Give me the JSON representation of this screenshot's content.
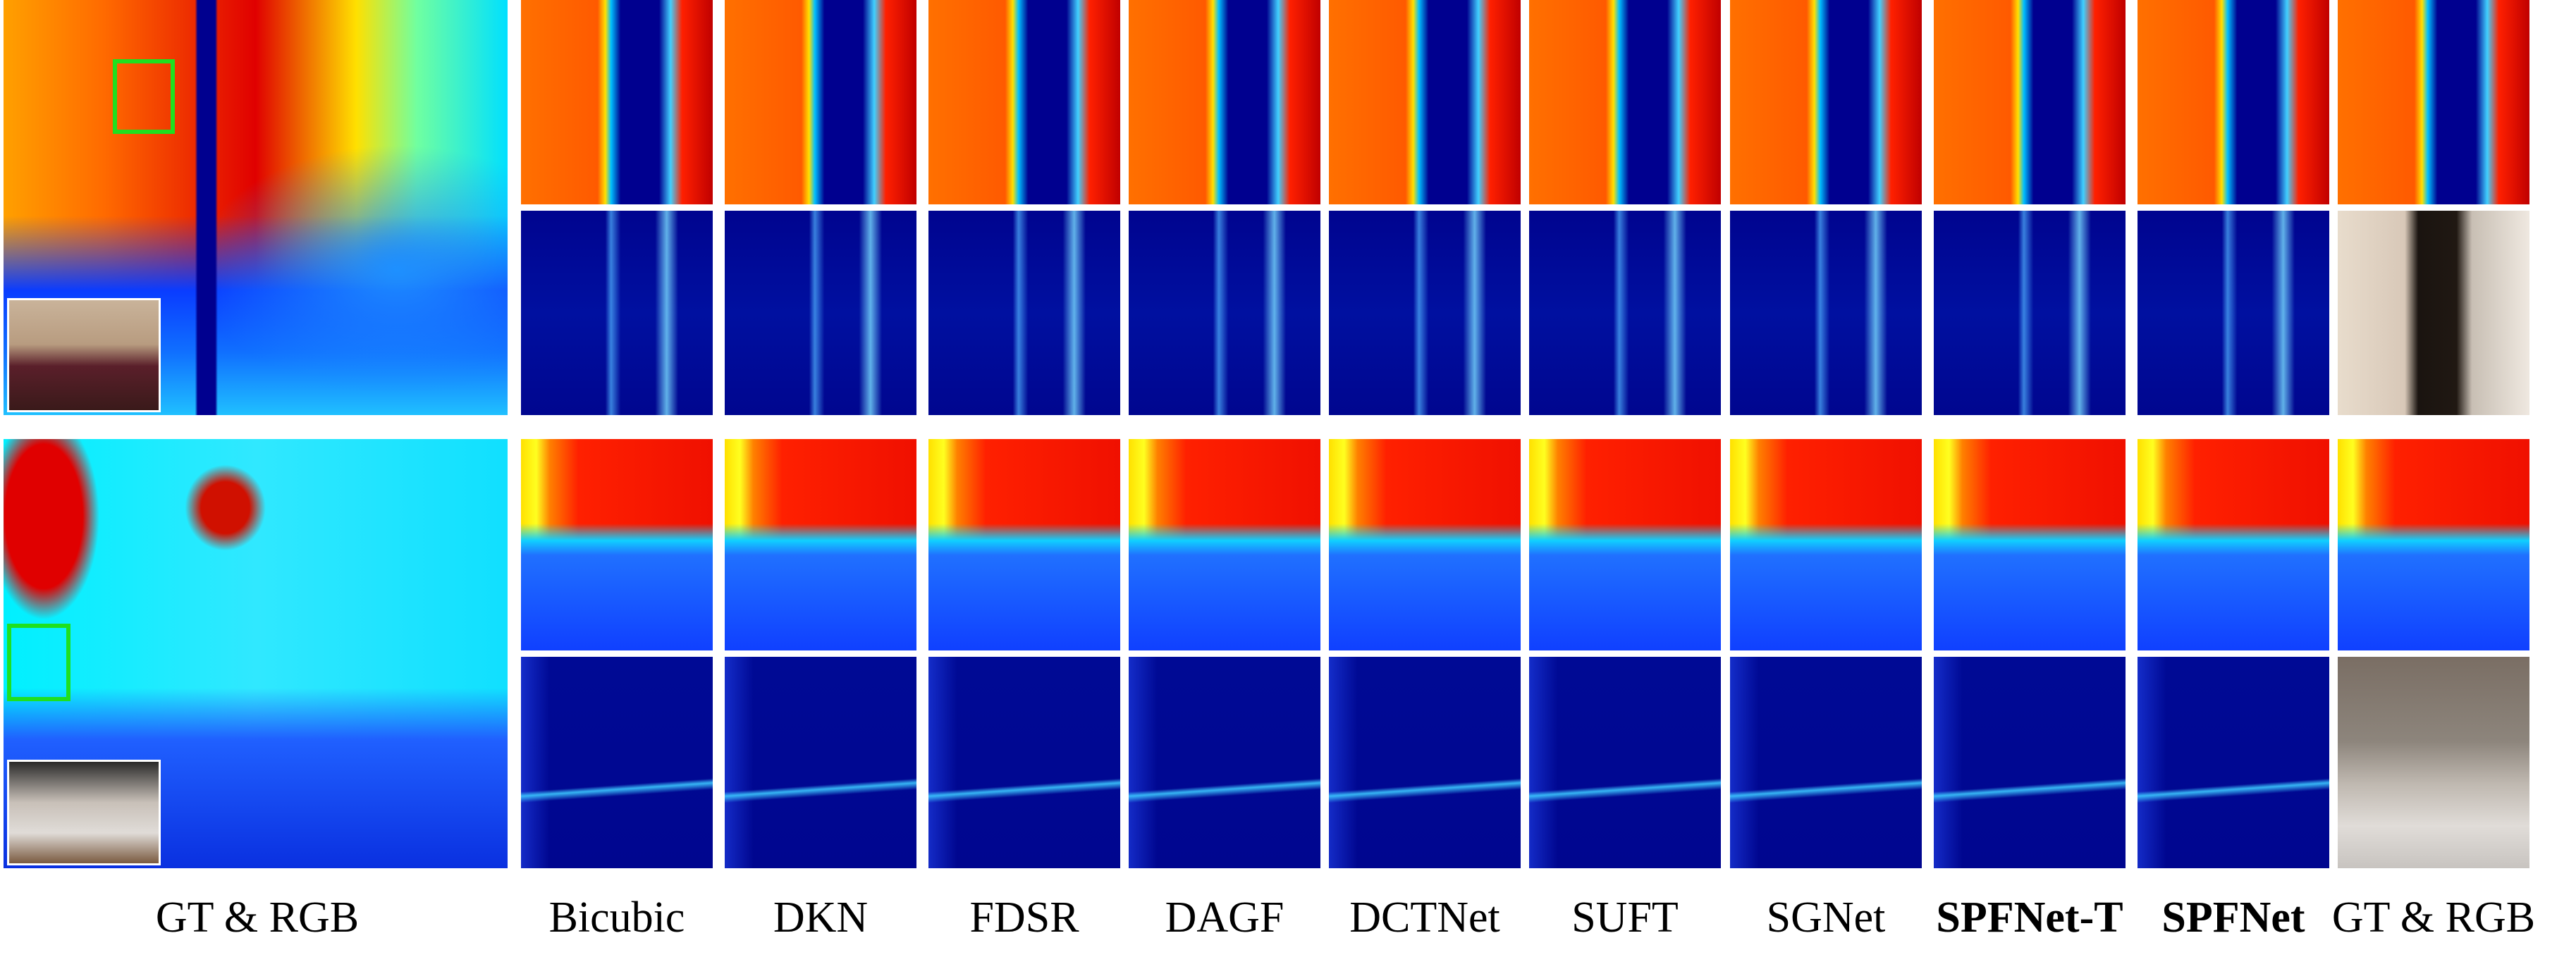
{
  "figure": {
    "columns": [
      {
        "label": "GT & RGB",
        "bold": false
      },
      {
        "label": "Bicubic",
        "bold": false
      },
      {
        "label": "DKN",
        "bold": false
      },
      {
        "label": "FDSR",
        "bold": false
      },
      {
        "label": "DAGF",
        "bold": false
      },
      {
        "label": "DCTNet",
        "bold": false
      },
      {
        "label": "SUFT",
        "bold": false
      },
      {
        "label": "SGNet",
        "bold": false
      },
      {
        "label": "SPFNet-T",
        "bold": true
      },
      {
        "label": "SPFNet",
        "bold": true
      },
      {
        "label": "GT & RGB",
        "bold": false
      }
    ],
    "highlight_box_color": "#1fe01f",
    "colormap": "jet"
  }
}
